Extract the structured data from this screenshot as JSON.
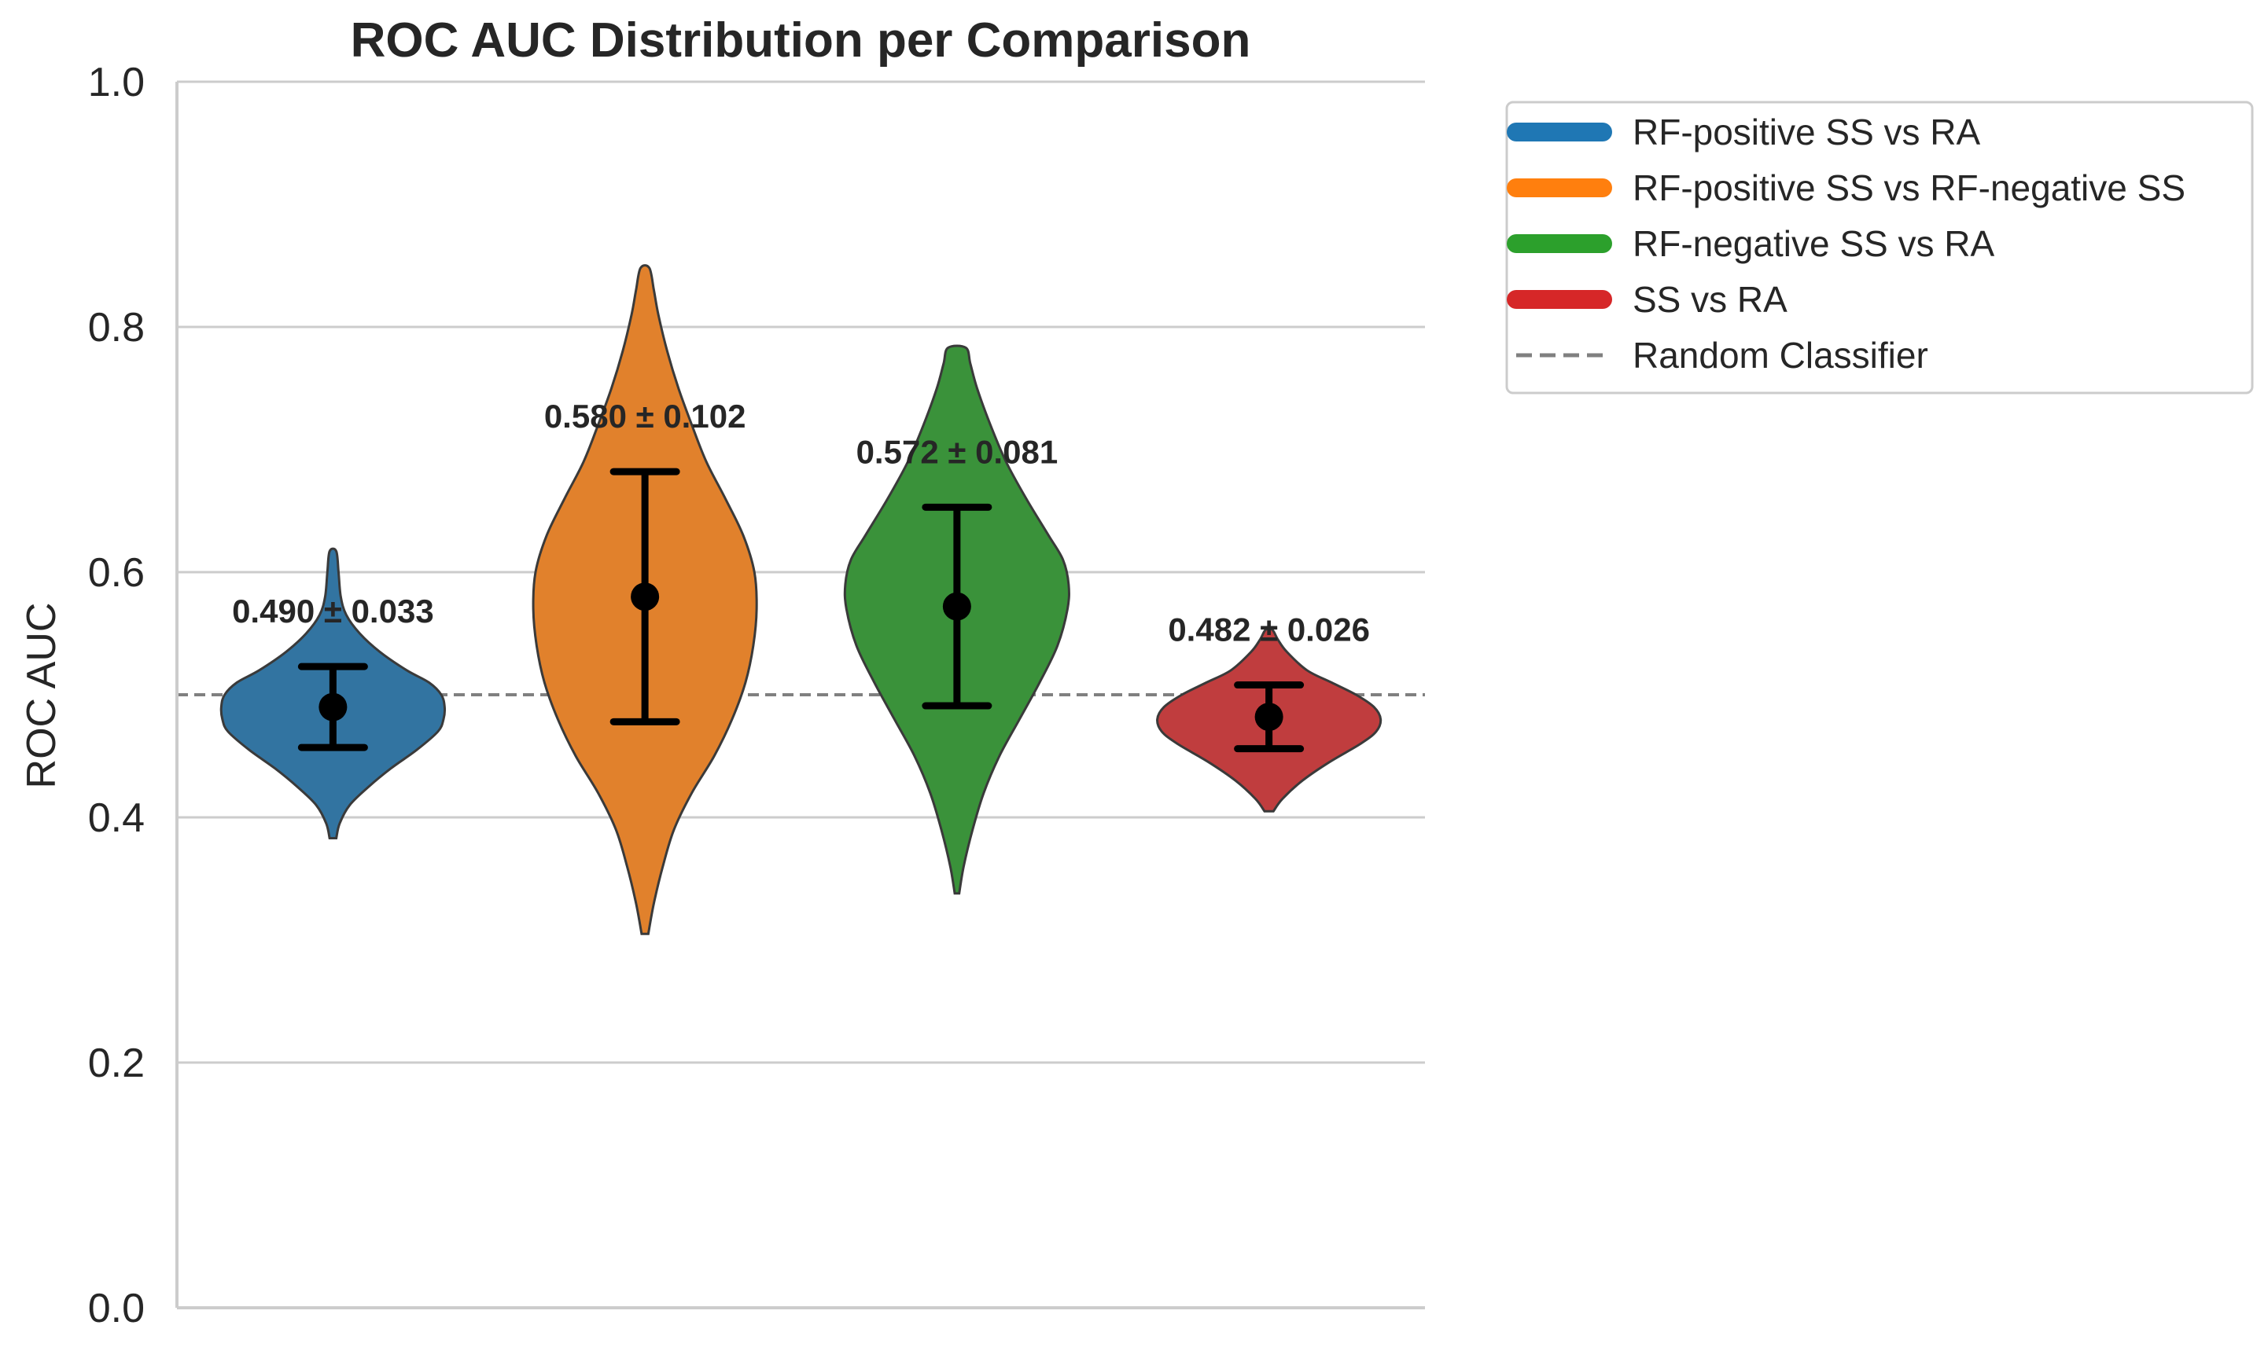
{
  "chart_data": {
    "type": "violin",
    "title": "ROC AUC Distribution per Comparison",
    "xlabel": "",
    "ylabel": "ROC AUC",
    "ylim": [
      0.0,
      1.0
    ],
    "yticks": [
      0.0,
      0.2,
      0.4,
      0.6,
      0.8,
      1.0
    ],
    "ytick_labels": [
      "0.0",
      "0.2",
      "0.4",
      "0.6",
      "0.8",
      "1.0"
    ],
    "grid": "horizontal",
    "legend_position": "outside-right-top",
    "reference_line": {
      "label": "Random Classifier",
      "value": 0.5,
      "color": "#808080",
      "style": "dashed"
    },
    "series": [
      {
        "name": "RF-positive SS vs RA",
        "color": "#1f77b4",
        "fill": "#3274a1",
        "mean": 0.49,
        "std": 0.033,
        "label": "0.490 ± 0.033",
        "min": 0.383,
        "max": 0.617,
        "density_y": [
          0.383,
          0.395,
          0.41,
          0.425,
          0.44,
          0.455,
          0.47,
          0.48,
          0.49,
          0.5,
          0.51,
          0.52,
          0.535,
          0.55,
          0.565,
          0.58,
          0.6,
          0.617
        ],
        "density_w": [
          0.03,
          0.06,
          0.15,
          0.32,
          0.52,
          0.75,
          0.94,
          0.99,
          1.0,
          0.97,
          0.86,
          0.66,
          0.42,
          0.24,
          0.12,
          0.07,
          0.05,
          0.03
        ]
      },
      {
        "name": "RF-positive SS vs RF-negative SS",
        "color": "#ff7f0e",
        "fill": "#e1812c",
        "mean": 0.58,
        "std": 0.102,
        "label": "0.580 ± 0.102",
        "min": 0.305,
        "max": 0.848,
        "density_y": [
          0.305,
          0.33,
          0.36,
          0.39,
          0.42,
          0.45,
          0.48,
          0.51,
          0.54,
          0.57,
          0.6,
          0.63,
          0.66,
          0.69,
          0.72,
          0.75,
          0.78,
          0.81,
          0.83,
          0.848
        ],
        "density_w": [
          0.03,
          0.08,
          0.16,
          0.26,
          0.42,
          0.62,
          0.78,
          0.9,
          0.97,
          1.0,
          0.98,
          0.88,
          0.72,
          0.55,
          0.42,
          0.3,
          0.2,
          0.12,
          0.08,
          0.04
        ]
      },
      {
        "name": "RF-negative SS vs RA",
        "color": "#2ca02c",
        "fill": "#3a923a",
        "mean": 0.572,
        "std": 0.081,
        "label": "0.572 ± 0.081",
        "min": 0.338,
        "max": 0.783,
        "density_y": [
          0.338,
          0.36,
          0.39,
          0.42,
          0.45,
          0.48,
          0.51,
          0.54,
          0.57,
          0.59,
          0.61,
          0.63,
          0.66,
          0.69,
          0.72,
          0.75,
          0.77,
          0.783
        ],
        "density_w": [
          0.02,
          0.06,
          0.14,
          0.24,
          0.38,
          0.56,
          0.74,
          0.9,
          0.99,
          1.0,
          0.95,
          0.82,
          0.62,
          0.44,
          0.3,
          0.18,
          0.12,
          0.08
        ]
      },
      {
        "name": "SS vs RA",
        "color": "#d62728",
        "fill": "#c03d3e",
        "mean": 0.482,
        "std": 0.026,
        "label": "0.482 ± 0.026",
        "min": 0.405,
        "max": 0.553,
        "density_y": [
          0.405,
          0.415,
          0.43,
          0.445,
          0.46,
          0.47,
          0.48,
          0.49,
          0.5,
          0.51,
          0.52,
          0.535,
          0.545,
          0.553
        ],
        "density_w": [
          0.04,
          0.12,
          0.3,
          0.54,
          0.82,
          0.96,
          1.0,
          0.94,
          0.78,
          0.56,
          0.34,
          0.16,
          0.08,
          0.03
        ]
      }
    ]
  }
}
